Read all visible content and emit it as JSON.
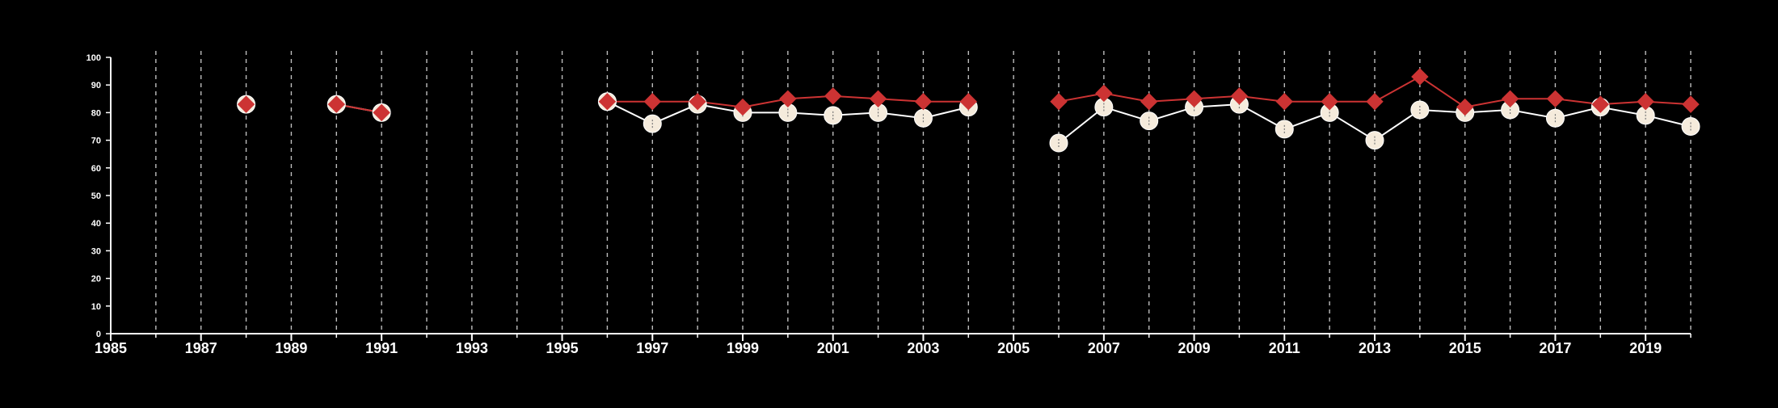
{
  "chart_data": {
    "type": "line",
    "title": "",
    "xlabel": "",
    "ylabel": "",
    "xlim": [
      1985,
      2020
    ],
    "ylim": [
      0,
      100
    ],
    "xticks": [
      1985,
      1987,
      1989,
      1991,
      1993,
      1995,
      1997,
      1999,
      2001,
      2003,
      2005,
      2007,
      2009,
      2011,
      2013,
      2015,
      2017,
      2019
    ],
    "yticks": [
      0,
      10,
      20,
      30,
      40,
      50,
      60,
      70,
      80,
      90,
      100
    ],
    "grid": "vertical dashed at every year",
    "background": "#000000",
    "series": [
      {
        "marker": "circle",
        "color": "#ffffff",
        "fill": "#f5ebdc",
        "points": [
          [
            1988,
            83
          ],
          [
            1990,
            83
          ],
          [
            1991,
            80
          ],
          [
            1996,
            84
          ],
          [
            1997,
            76
          ],
          [
            1998,
            83
          ],
          [
            1999,
            80
          ],
          [
            2000,
            80
          ],
          [
            2001,
            79
          ],
          [
            2002,
            80
          ],
          [
            2003,
            78
          ],
          [
            2004,
            82
          ],
          [
            2006,
            69
          ],
          [
            2007,
            82
          ],
          [
            2008,
            77
          ],
          [
            2009,
            82
          ],
          [
            2010,
            83
          ],
          [
            2011,
            74
          ],
          [
            2012,
            80
          ],
          [
            2013,
            70
          ],
          [
            2014,
            81
          ],
          [
            2015,
            80
          ],
          [
            2016,
            81
          ],
          [
            2017,
            78
          ],
          [
            2018,
            82
          ],
          [
            2019,
            79
          ],
          [
            2020,
            75
          ]
        ]
      },
      {
        "marker": "diamond",
        "color": "#cc3333",
        "points": [
          [
            1988,
            83
          ],
          [
            1990,
            83
          ],
          [
            1991,
            80
          ],
          [
            1996,
            84
          ],
          [
            1997,
            84
          ],
          [
            1998,
            84
          ],
          [
            1999,
            82
          ],
          [
            2000,
            85
          ],
          [
            2001,
            86
          ],
          [
            2002,
            85
          ],
          [
            2003,
            84
          ],
          [
            2004,
            84
          ],
          [
            2006,
            84
          ],
          [
            2007,
            87
          ],
          [
            2008,
            84
          ],
          [
            2009,
            85
          ],
          [
            2010,
            86
          ],
          [
            2011,
            84
          ],
          [
            2012,
            84
          ],
          [
            2013,
            84
          ],
          [
            2014,
            93
          ],
          [
            2015,
            82
          ],
          [
            2016,
            85
          ],
          [
            2017,
            85
          ],
          [
            2018,
            83
          ],
          [
            2019,
            84
          ],
          [
            2020,
            83
          ]
        ]
      }
    ]
  }
}
